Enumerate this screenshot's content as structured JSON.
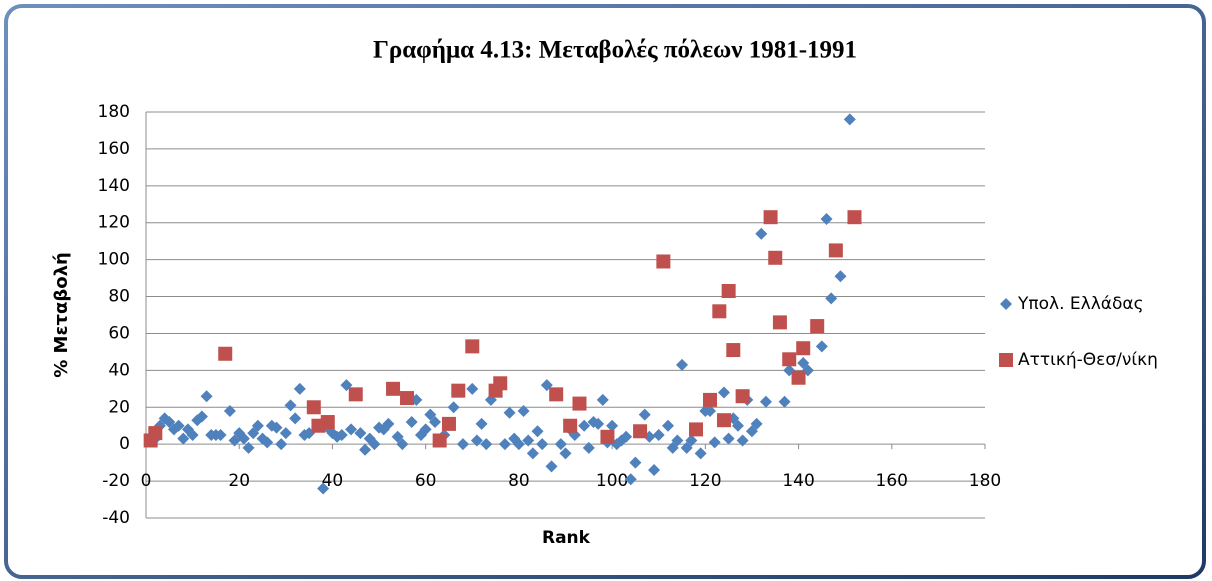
{
  "chart_data": {
    "type": "scatter",
    "title": "Γραφήμα 4.13: Μεταβολές πόλεων 1981-1991",
    "x_label": "Rank",
    "y_label": "% Μεταβολή",
    "xlim": [
      0,
      180
    ],
    "xticks": [
      0,
      20,
      40,
      60,
      80,
      100,
      120,
      140,
      160,
      180
    ],
    "ylim": [
      -40,
      180
    ],
    "yticks": [
      -40,
      -20,
      0,
      20,
      40,
      60,
      80,
      100,
      120,
      140,
      160,
      180
    ],
    "grid": true,
    "legend": "right",
    "series": [
      {
        "name": "Υπολ. Ελλάδας",
        "color": "#4f81bd",
        "marker": "diamond",
        "x": [
          2,
          3,
          4,
          5,
          6,
          7,
          8,
          9,
          10,
          11,
          12,
          13,
          14,
          15,
          16,
          18,
          19,
          20,
          21,
          22,
          23,
          24,
          25,
          26,
          27,
          28,
          29,
          30,
          31,
          32,
          33,
          34,
          35,
          38,
          39,
          40,
          41,
          42,
          43,
          44,
          46,
          47,
          48,
          49,
          50,
          51,
          52,
          54,
          55,
          57,
          58,
          59,
          60,
          61,
          62,
          64,
          66,
          68,
          70,
          71,
          72,
          73,
          74,
          77,
          78,
          79,
          80,
          81,
          82,
          83,
          84,
          85,
          86,
          87,
          89,
          90,
          91,
          92,
          94,
          95,
          96,
          97,
          98,
          99,
          100,
          101,
          102,
          103,
          104,
          105,
          107,
          108,
          109,
          110,
          112,
          113,
          114,
          115,
          116,
          117,
          119,
          120,
          121,
          122,
          124,
          125,
          126,
          127,
          128,
          129,
          130,
          131,
          132,
          133,
          137,
          138,
          141,
          142,
          145,
          146,
          147,
          149,
          151
        ],
        "values": [
          3,
          10,
          14,
          12,
          8,
          10,
          3,
          8,
          5,
          13,
          15,
          26,
          5,
          5,
          5,
          18,
          2,
          6,
          3,
          -2,
          6,
          10,
          3,
          1,
          10,
          9,
          0,
          6,
          21,
          14,
          30,
          5,
          6,
          -24,
          9,
          6,
          4,
          5,
          32,
          8,
          6,
          -3,
          3,
          0,
          9,
          8,
          11,
          4,
          0,
          12,
          24,
          5,
          8,
          16,
          12,
          5,
          20,
          0,
          30,
          2,
          11,
          0,
          24,
          0,
          17,
          3,
          0,
          18,
          2,
          -5,
          7,
          0,
          32,
          -12,
          0,
          -5,
          8,
          5,
          10,
          -2,
          12,
          11,
          24,
          1,
          10,
          0,
          2,
          4,
          -19,
          -10,
          16,
          4,
          -14,
          5,
          10,
          -2,
          2,
          43,
          -2,
          2,
          -5,
          18,
          18,
          1,
          28,
          3,
          14,
          10,
          2,
          24,
          7,
          11,
          114,
          23,
          23,
          40,
          44,
          40,
          53,
          122,
          79,
          91,
          176
        ]
      },
      {
        "name": "Αττική-Θεσ/νίκη",
        "color": "#c0504d",
        "marker": "square",
        "x": [
          1,
          2,
          17,
          36,
          37,
          39,
          45,
          53,
          56,
          63,
          65,
          67,
          70,
          75,
          76,
          88,
          91,
          93,
          99,
          106,
          111,
          118,
          121,
          123,
          124,
          125,
          126,
          128,
          134,
          135,
          136,
          138,
          140,
          141,
          144,
          148,
          152
        ],
        "values": [
          2,
          6,
          49,
          20,
          10,
          12,
          27,
          30,
          25,
          2,
          11,
          29,
          53,
          29,
          33,
          27,
          10,
          22,
          4,
          7,
          99,
          8,
          24,
          72,
          13,
          83,
          51,
          26,
          123,
          101,
          66,
          46,
          36,
          52,
          64,
          105,
          123
        ]
      }
    ]
  }
}
